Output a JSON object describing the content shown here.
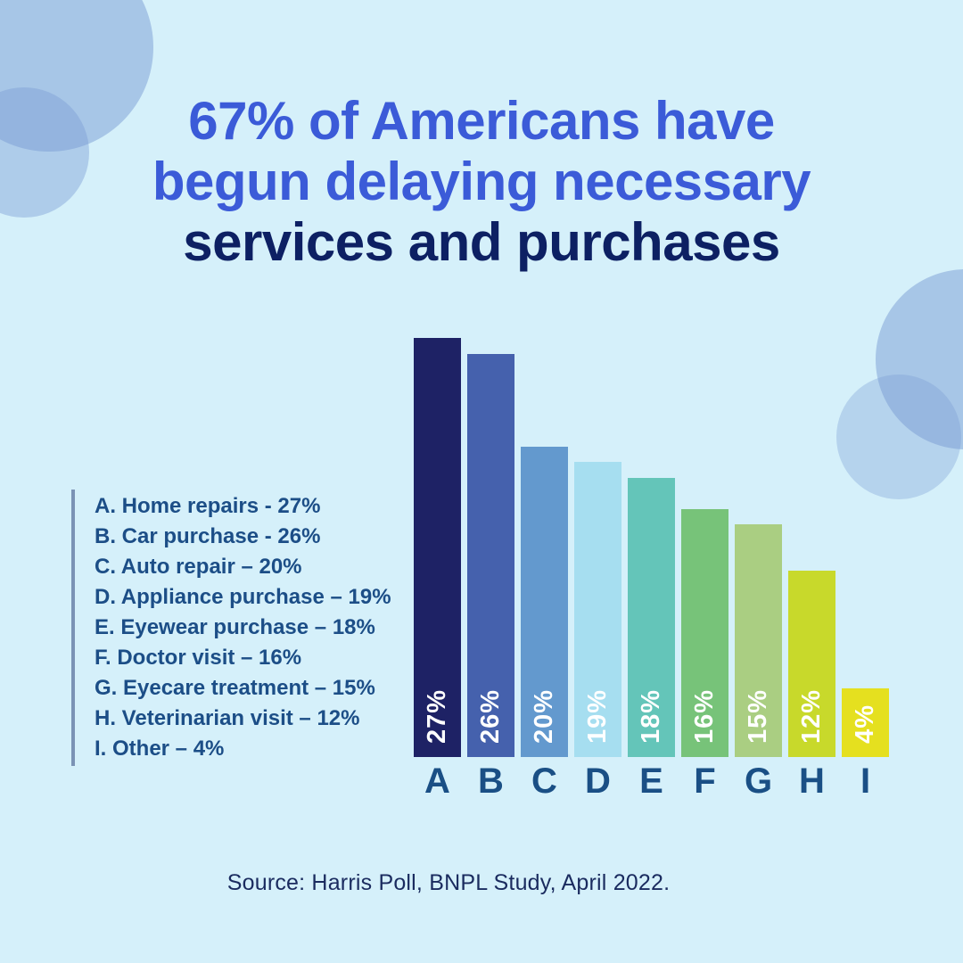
{
  "title": {
    "line1": "67% of Americans have",
    "line2": "begun delaying necessary",
    "line3": "services and purchases"
  },
  "legend": {
    "items": [
      "A. Home repairs - 27%",
      "B. Car purchase - 26%",
      "C. Auto repair – 20%",
      "D. Appliance purchase – 19%",
      "E. Eyewear purchase – 18%",
      "F. Doctor visit – 16%",
      "G. Eyecare treatment – 15%",
      "H. Veterinarian visit – 12%",
      "I. Other – 4%"
    ]
  },
  "source": "Source: Harris Poll, BNPL Study, April 2022.",
  "colors": {
    "background": "#D5F0FA",
    "title_accent": "#3B5BD8",
    "title_dark": "#0D2063",
    "legend_text": "#1C4E87",
    "legend_rule": "#7B93B5",
    "axis_letter": "#1A4F85",
    "source_text": "#1A2B5F",
    "decor_circle": "#799BD4",
    "value_label_text": "#FFFFFF"
  },
  "chart_data": {
    "type": "bar",
    "title": "67% of Americans have begun delaying necessary services and purchases",
    "categories": [
      "A",
      "B",
      "C",
      "D",
      "E",
      "F",
      "G",
      "H",
      "I"
    ],
    "values": [
      27,
      26,
      20,
      19,
      18,
      16,
      15,
      12,
      4
    ],
    "value_labels": [
      "27%",
      "26%",
      "20%",
      "19%",
      "18%",
      "16%",
      "15%",
      "12%",
      "4%"
    ],
    "category_names": [
      "Home repairs",
      "Car purchase",
      "Auto repair",
      "Appliance purchase",
      "Eyewear purchase",
      "Doctor visit",
      "Eyecare treatment",
      "Veterinarian visit",
      "Other"
    ],
    "bar_colors": [
      "#1E2265",
      "#4561AD",
      "#6399CE",
      "#A6DEF0",
      "#64C5B9",
      "#77C379",
      "#AACE82",
      "#C8D92B",
      "#E5E01F"
    ],
    "xlabel": "",
    "ylabel": "",
    "ylim": [
      0,
      28
    ],
    "grid": false,
    "axis_lines": false,
    "legend_position": "left",
    "value_label_position": "inside-bottom-rotated-90"
  }
}
